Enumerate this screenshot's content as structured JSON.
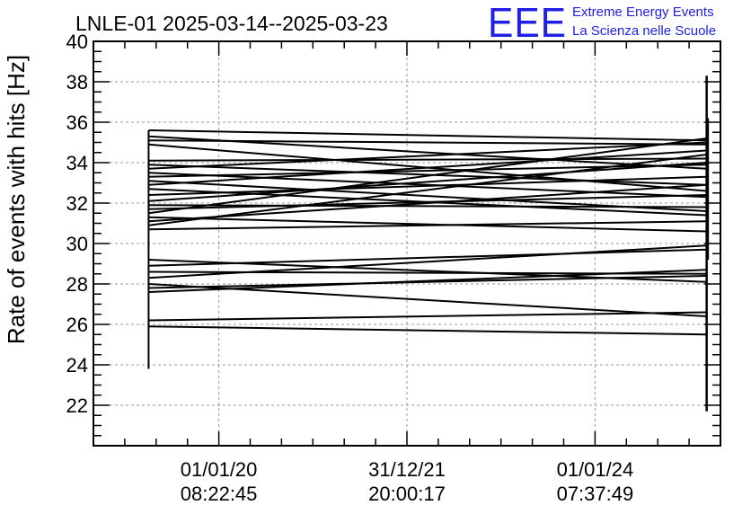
{
  "chart_data": {
    "type": "line",
    "title": "LNLE-01 2025-03-14--2025-03-23",
    "ylabel": "Rate of events with hits [Hz]",
    "xlabel": "",
    "ylim": [
      20,
      40
    ],
    "yticks": [
      "22",
      "24",
      "26",
      "28",
      "30",
      "32",
      "34",
      "36",
      "38",
      "40"
    ],
    "xlim": [
      0,
      100
    ],
    "xticks": [
      {
        "x": 20,
        "date": "01/01/20",
        "time": "08:22:45"
      },
      {
        "x": 50,
        "date": "31/12/21",
        "time": "20:00:17"
      },
      {
        "x": 80,
        "date": "01/01/24",
        "time": "07:37:49"
      }
    ],
    "grid": true,
    "x_start": 8.8,
    "x_end": 97.8,
    "start_range": [
      23.8,
      35.6
    ],
    "end_range": [
      21.7,
      38.3
    ],
    "start_values": [
      35.6,
      35.3,
      35.1,
      34.9,
      34.1,
      33.9,
      33.7,
      33.5,
      33.3,
      33.1,
      32.9,
      32.7,
      32.4,
      32.1,
      31.9,
      31.7,
      31.5,
      31.3,
      31.1,
      30.9,
      30.7,
      29.2,
      28.9,
      28.6,
      28.3,
      28.0,
      27.8,
      27.6,
      26.2,
      25.9
    ],
    "end_values": [
      35.1,
      33.7,
      34.9,
      32.6,
      34.2,
      32.9,
      35.0,
      32.3,
      33.9,
      31.6,
      34.6,
      31.4,
      33.3,
      34.0,
      31.8,
      32.4,
      35.2,
      30.6,
      32.9,
      34.4,
      31.1,
      28.1,
      29.7,
      28.5,
      29.9,
      26.4,
      28.4,
      28.7,
      26.6,
      25.5
    ]
  },
  "logo": {
    "mark": "EEE",
    "line1": "Extreme Energy Events",
    "line2": "La Scienza nelle Scuole"
  }
}
